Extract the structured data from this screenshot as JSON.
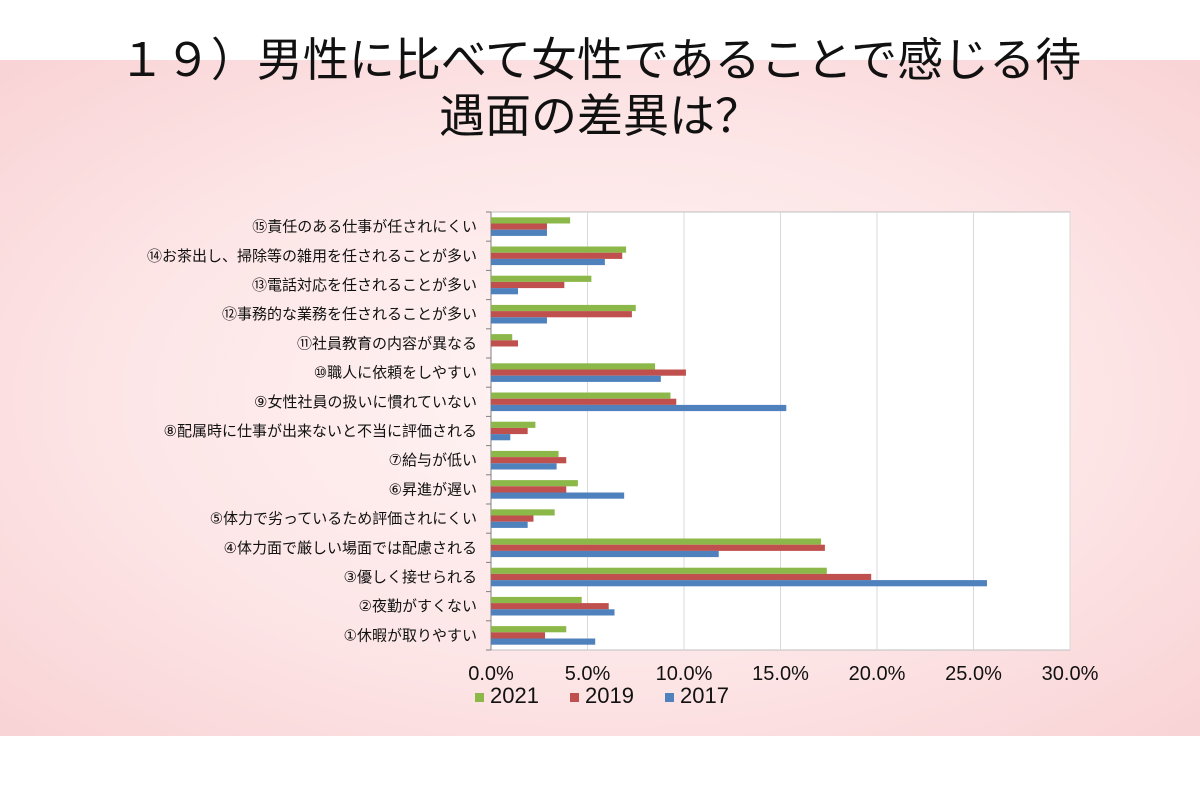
{
  "title": {
    "line1": "１９）男性に比べて女性であることで感じる待",
    "line2": "遇面の差異は？"
  },
  "colors": {
    "2021": "#8cb84a",
    "2019": "#c0504d",
    "2017": "#4f81bd"
  },
  "chart_data": {
    "type": "bar",
    "orientation": "horizontal",
    "title": "１９）男性に比べて女性であることで感じる待遇面の差異は？",
    "xlim": [
      0,
      30
    ],
    "ticks": [
      "0.0%",
      "5.0%",
      "10.0%",
      "15.0%",
      "20.0%",
      "25.0%",
      "30.0%"
    ],
    "grid": true,
    "legend_position": "bottom",
    "categories": [
      "⑮責任のある仕事が任されにくい",
      "⑭お茶出し、掃除等の雑用を任されることが多い",
      "⑬電話対応を任されることが多い",
      "⑫事務的な業務を任されることが多い",
      "⑪社員教育の内容が異なる",
      "⑩職人に依頼をしやすい",
      "⑨女性社員の扱いに慣れていない",
      "⑧配属時に仕事が出来ないと不当に評価される",
      "⑦給与が低い",
      "⑥昇進が遅い",
      "⑤体力で劣っているため評価されにくい",
      "④体力面で厳しい場面では配慮される",
      "③優しく接せられる",
      "②夜勤がすくない",
      "①休暇が取りやすい"
    ],
    "series": [
      {
        "name": "2021",
        "values": [
          4.1,
          7.0,
          5.2,
          7.5,
          1.1,
          8.5,
          9.3,
          2.3,
          3.5,
          4.5,
          3.3,
          17.1,
          17.4,
          4.7,
          3.9
        ]
      },
      {
        "name": "2019",
        "values": [
          2.9,
          6.8,
          3.8,
          7.3,
          1.4,
          10.1,
          9.6,
          1.9,
          3.9,
          3.9,
          2.2,
          17.3,
          19.7,
          6.1,
          2.8
        ]
      },
      {
        "name": "2017",
        "values": [
          2.9,
          5.9,
          1.4,
          2.9,
          0.0,
          8.8,
          15.3,
          1.0,
          3.4,
          6.9,
          1.9,
          11.8,
          25.7,
          6.4,
          5.4
        ]
      }
    ]
  }
}
